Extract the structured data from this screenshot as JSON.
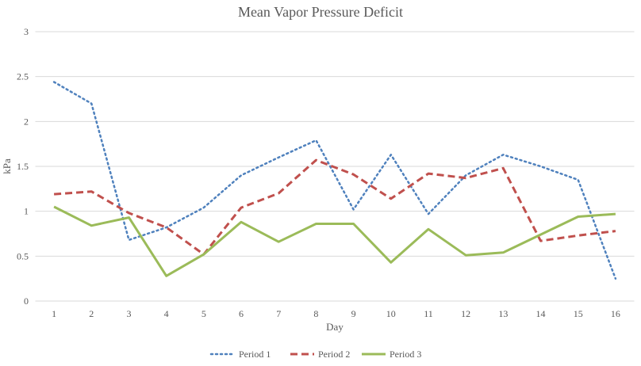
{
  "chart_data": {
    "type": "line",
    "title": "Mean Vapor Pressure Deficit",
    "xlabel": "Day",
    "ylabel": "kPa",
    "ylim": [
      0,
      3
    ],
    "yticks": [
      "0",
      "0.5",
      "1",
      "1.5",
      "2",
      "2.5",
      "3"
    ],
    "ytick_values": [
      0,
      0.5,
      1,
      1.5,
      2,
      2.5,
      3
    ],
    "grid": true,
    "legend_position": "bottom",
    "categories": [
      "1",
      "2",
      "3",
      "4",
      "5",
      "6",
      "7",
      "8",
      "9",
      "10",
      "11",
      "12",
      "13",
      "14",
      "15",
      "16"
    ],
    "series": [
      {
        "name": "Period 1",
        "color": "#4F81BD",
        "style": "dotted",
        "values": [
          2.44,
          2.2,
          0.68,
          0.82,
          1.04,
          1.4,
          1.6,
          1.79,
          1.02,
          1.63,
          0.97,
          1.4,
          1.63,
          1.5,
          1.35,
          0.25
        ]
      },
      {
        "name": "Period 2",
        "color": "#C0504D",
        "style": "dashed",
        "values": [
          1.19,
          1.22,
          0.98,
          0.82,
          0.52,
          1.04,
          1.2,
          1.57,
          1.41,
          1.14,
          1.42,
          1.37,
          1.48,
          0.67,
          0.73,
          0.78
        ]
      },
      {
        "name": "Period 3",
        "color": "#9BBB59",
        "style": "solid",
        "values": [
          1.05,
          0.84,
          0.93,
          0.28,
          0.52,
          0.88,
          0.66,
          0.86,
          0.86,
          0.43,
          0.8,
          0.51,
          0.54,
          0.74,
          0.94,
          0.97
        ]
      }
    ]
  }
}
